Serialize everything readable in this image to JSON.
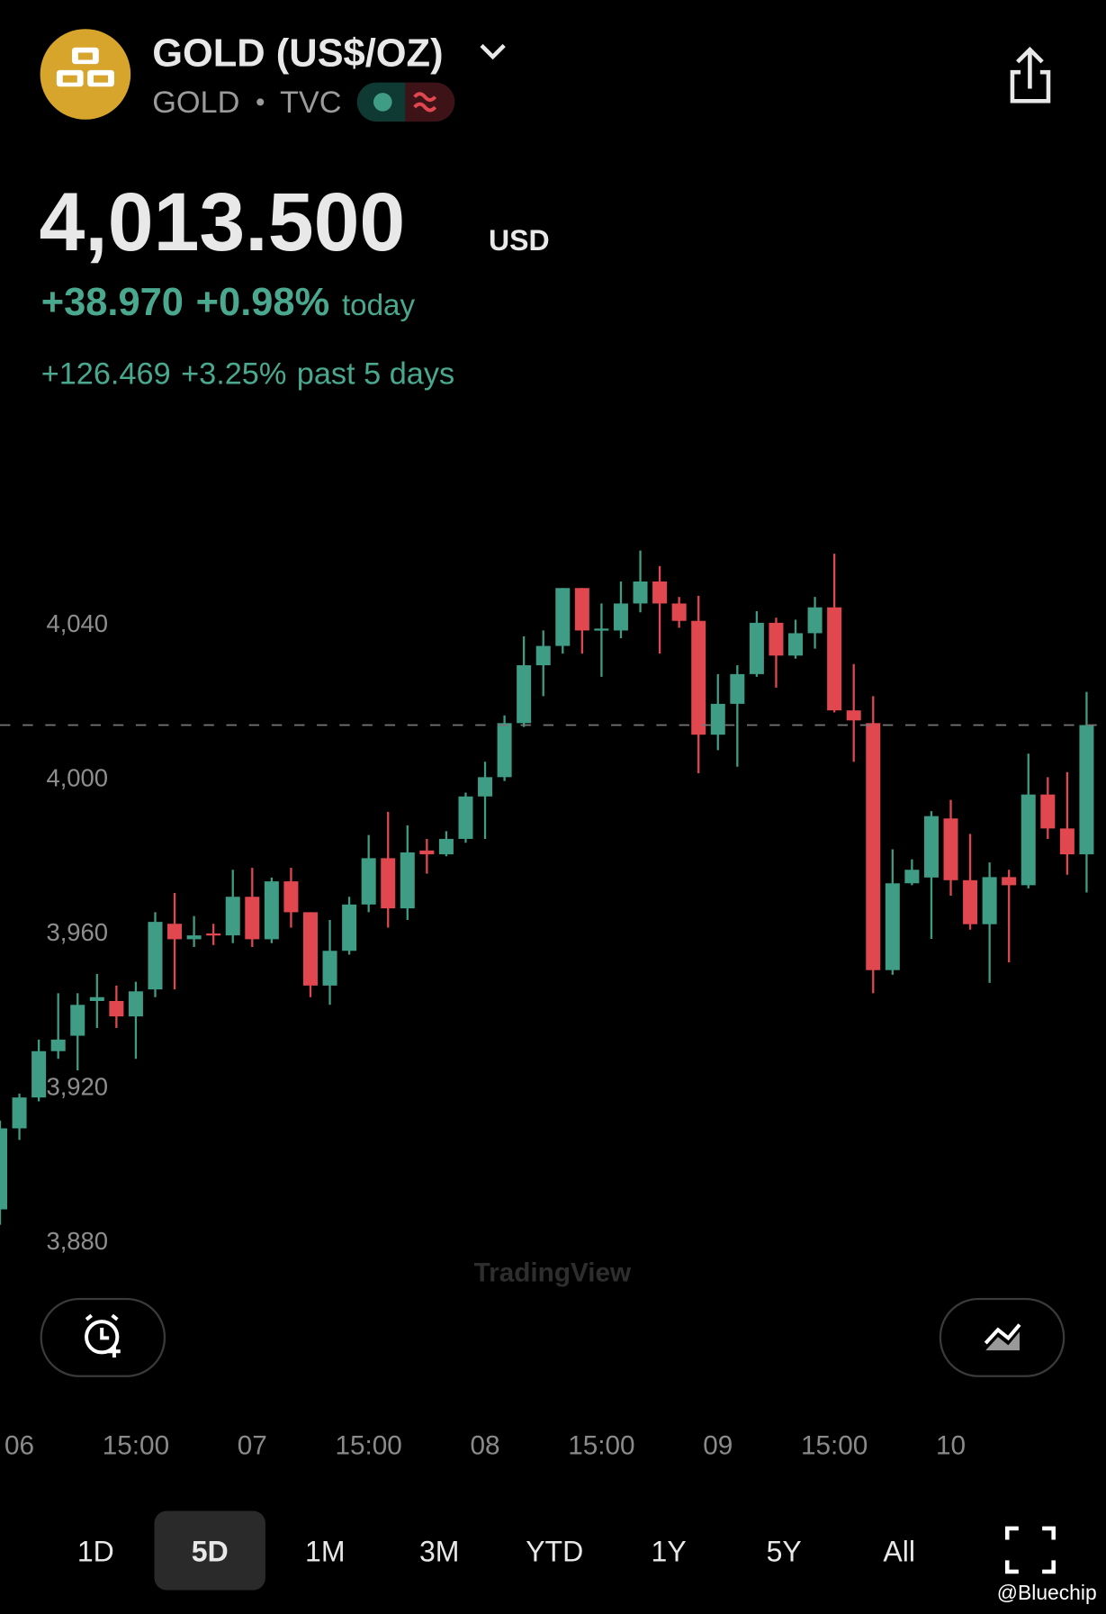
{
  "header": {
    "title": "GOLD (US$/OZ)",
    "symbol": "GOLD",
    "exchange": "TVC"
  },
  "quote": {
    "price": "4,013.500",
    "currency": "USD",
    "change": "+38.970",
    "change_percent": "+0.98%",
    "change_period": "today",
    "period_change": "+126.469",
    "period_change_percent": "+3.25%",
    "period_label": "past 5 days"
  },
  "chart_data": {
    "type": "candlestick",
    "x": [
      -2,
      0,
      2,
      4,
      6,
      8,
      10,
      12,
      14,
      16,
      18,
      20,
      22,
      24,
      26,
      28,
      30,
      32,
      34,
      36,
      38,
      40,
      42,
      44,
      46,
      48,
      50,
      52,
      54,
      56,
      58,
      60,
      62,
      64,
      66,
      68,
      70,
      72,
      74,
      76,
      78,
      80,
      82,
      84,
      86,
      88,
      90,
      92,
      94,
      96,
      98,
      100,
      102,
      104,
      106,
      108,
      110
    ],
    "open": [
      3888,
      3909,
      3917,
      3929,
      3933,
      3942,
      3942,
      3938,
      3945,
      3962,
      3958,
      3959.5,
      3959,
      3969,
      3958,
      3973,
      3965,
      3946,
      3955,
      3967,
      3979,
      3966,
      3981,
      3980,
      3984,
      3995,
      4000,
      4014,
      4029,
      4034,
      4049,
      4038,
      4038,
      4045,
      4050.7,
      4045,
      4040.5,
      4011,
      4019,
      4026.7,
      4040,
      4031.5,
      4037.3,
      4044,
      4017.3,
      4014,
      3950,
      3972.5,
      3974,
      3989.3,
      3973.3,
      3961.9,
      3974.1,
      3972,
      3995.5,
      3986.7,
      3980
    ],
    "high": [
      3911,
      3918,
      3932,
      3944,
      3944,
      3949,
      3946,
      3947,
      3965,
      3970,
      3964,
      3962,
      3976,
      3976.5,
      3974,
      3976.5,
      3965,
      3963,
      3969,
      3985,
      3991,
      3987.5,
      3984,
      3986,
      3996,
      4004,
      4016,
      4036.5,
      4038,
      4049,
      4049,
      4045,
      4050.7,
      4058.7,
      4054.7,
      4046.7,
      4047,
      4026.7,
      4029,
      4043,
      4041.3,
      4040.8,
      4046.7,
      4057.9,
      4029.3,
      4021,
      3981.3,
      3978.7,
      3991.2,
      3994.1,
      3985.3,
      3977.9,
      3976,
      4006.1,
      4000,
      4001.3,
      4022.1
    ],
    "low": [
      3884,
      3906,
      3916,
      3927,
      3924,
      3935,
      3935,
      3927,
      3943,
      3945,
      3956,
      3956.5,
      3957,
      3956,
      3957,
      3961,
      3943,
      3941,
      3954,
      3965,
      3961,
      3963,
      3975,
      3979.5,
      3983,
      3984,
      3999,
      4013,
      4021,
      4032,
      4032,
      4026,
      4036,
      4042.7,
      4032,
      4038.7,
      4001,
      4007,
      4002.7,
      4026,
      4023.2,
      4030.7,
      4033.3,
      4016.8,
      4004,
      3944,
      3948.8,
      3972,
      3958.1,
      3969.3,
      3960.5,
      3946.7,
      3952,
      3971.2,
      3984,
      3974.7,
      3970.1
    ],
    "close": [
      3909,
      3917,
      3929,
      3932,
      3941,
      3943,
      3938,
      3944.5,
      3962.5,
      3958,
      3959,
      3959,
      3969,
      3958,
      3973,
      3965,
      3946,
      3955,
      3967,
      3979,
      3966,
      3980.5,
      3980,
      3984,
      3995,
      4000,
      4014,
      4029,
      4034,
      4049,
      4038,
      4038.5,
      4045,
      4050.7,
      4045,
      4040.5,
      4011,
      4019,
      4026.7,
      4040,
      4031.5,
      4037.3,
      4044,
      4017.3,
      4014.7,
      3950,
      3972.5,
      3976,
      3989.9,
      3973.3,
      3961.9,
      3974.1,
      3972,
      3995.5,
      3986.7,
      3980,
      4013.5
    ],
    "up_color": "#3f9c85",
    "down_color": "#e0474f",
    "xlim": [
      -2,
      112
    ],
    "xticks": [
      {
        "value": 0,
        "label": "06"
      },
      {
        "value": 12,
        "label": "15:00"
      },
      {
        "value": 24,
        "label": "07"
      },
      {
        "value": 36,
        "label": "15:00"
      },
      {
        "value": 48,
        "label": "08"
      },
      {
        "value": 60,
        "label": "15:00"
      },
      {
        "value": 72,
        "label": "09"
      },
      {
        "value": 84,
        "label": "15:00"
      },
      {
        "value": 96,
        "label": "10"
      }
    ],
    "ylim": [
      3868,
      4076
    ],
    "yticks": [
      {
        "value": 3880,
        "label": "3,880"
      },
      {
        "value": 3920,
        "label": "3,920"
      },
      {
        "value": 3960,
        "label": "3,960"
      },
      {
        "value": 4000,
        "label": "4,000"
      },
      {
        "value": 4040,
        "label": "4,040"
      }
    ],
    "watermark": "TradingView"
  },
  "timeframes": {
    "options": [
      "1D",
      "5D",
      "1M",
      "3M",
      "YTD",
      "1Y",
      "5Y",
      "All"
    ],
    "selected": 1
  },
  "footer": {
    "credit": "@Bluechip"
  }
}
